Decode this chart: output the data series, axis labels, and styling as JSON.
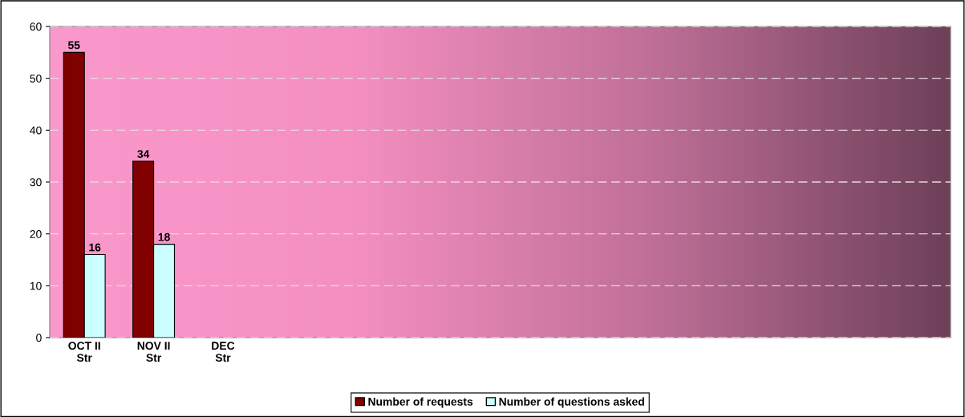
{
  "chart_data": {
    "type": "bar",
    "categories": [
      "OCT II\nStr",
      "NOV II\nStr",
      "DEC\nStr",
      null,
      null,
      null,
      null,
      null,
      null,
      null,
      null,
      null,
      null
    ],
    "series": [
      {
        "name": "Number of requests",
        "color": "#800000",
        "values": [
          55,
          34,
          null,
          null,
          null,
          null,
          null,
          null,
          null,
          null,
          null,
          null,
          null
        ]
      },
      {
        "name": "Number of questions asked",
        "color": "#ccffff",
        "values": [
          16,
          18,
          null,
          null,
          null,
          null,
          null,
          null,
          null,
          null,
          null,
          null,
          null
        ]
      }
    ],
    "ylim": [
      0,
      60
    ],
    "yticks": [
      0,
      10,
      20,
      30,
      40,
      50,
      60
    ],
    "grid": "y",
    "legend": "bottom",
    "data_labels": true
  }
}
